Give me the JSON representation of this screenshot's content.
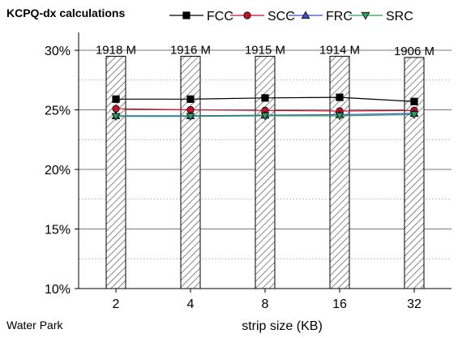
{
  "chart_data": {
    "type": "bar",
    "title": "KCPQ-dx calculations",
    "subtitle": "Water Park",
    "xlabel": "strip size (KB)",
    "ylabel": "",
    "categories": [
      "2",
      "4",
      "8",
      "16",
      "32"
    ],
    "bar_series": {
      "values": [
        29.5,
        29.5,
        29.5,
        29.5,
        29.4
      ],
      "labels": [
        "1918 M",
        "1916 M",
        "1915 M",
        "1914 M",
        "1906 M"
      ],
      "pattern": "diagonal-hatch"
    },
    "series": [
      {
        "name": "FCC",
        "values": [
          25.9,
          25.9,
          26.0,
          26.05,
          25.7
        ],
        "color": "#000000",
        "marker": "square"
      },
      {
        "name": "SCC",
        "values": [
          25.1,
          25.0,
          24.95,
          24.9,
          24.95
        ],
        "color": "#c8102e",
        "marker": "circle"
      },
      {
        "name": "FRC",
        "values": [
          24.5,
          24.5,
          24.55,
          24.6,
          24.7
        ],
        "color": "#3a52c4",
        "marker": "triangle-up"
      },
      {
        "name": "SRC",
        "values": [
          24.45,
          24.45,
          24.5,
          24.5,
          24.6
        ],
        "color": "#2e9e5b",
        "marker": "triangle-down"
      }
    ],
    "ylim": [
      10,
      31.5
    ],
    "yticks": [
      "10%",
      "15%",
      "20%",
      "25%",
      "30%"
    ],
    "ytick_values": [
      10,
      15,
      20,
      25,
      30
    ],
    "grid": true,
    "legend_position": "top"
  }
}
